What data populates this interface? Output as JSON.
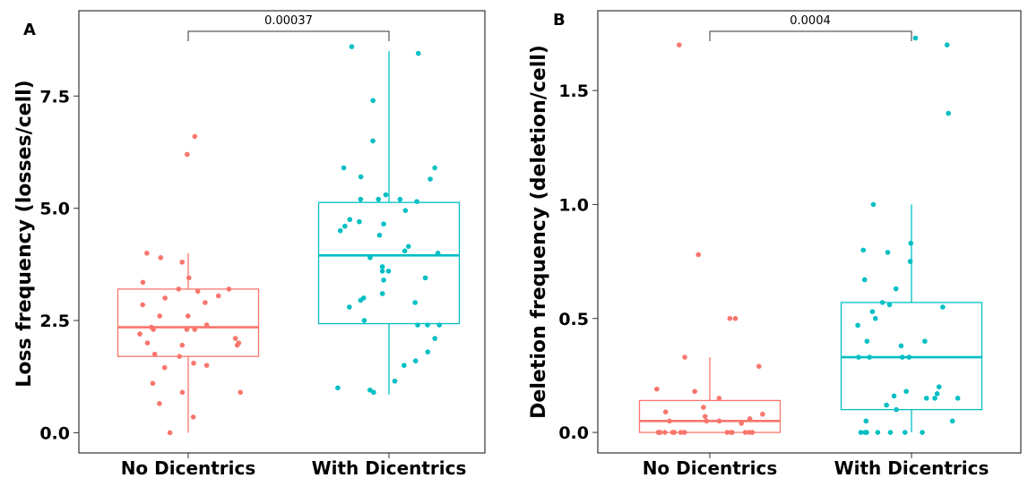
{
  "chart_data": [
    {
      "panel": "A",
      "type": "box",
      "ylabel": "Loss frequency (losses/cell)",
      "categories": [
        "No Dicentrics",
        "With Dicentrics"
      ],
      "yticks": [
        "0.0",
        "2.5",
        "5.0",
        "7.5"
      ],
      "ytick_values": [
        0,
        2.5,
        5,
        7.5
      ],
      "ylim": [
        -0.45,
        9.4
      ],
      "grid": false,
      "pvalue": "0.00037",
      "colors": [
        "#F8766D",
        "#00BFC4"
      ],
      "boxes": [
        {
          "category": "No Dicentrics",
          "min": 0.0,
          "q1": 1.7,
          "median": 2.35,
          "q3": 3.2,
          "max": 4.0
        },
        {
          "category": "With Dicentrics",
          "min": 0.85,
          "q1": 2.43,
          "median": 3.95,
          "q3": 5.13,
          "max": 8.5
        }
      ],
      "points": [
        [
          6.2,
          6.6,
          4.0,
          3.9,
          3.8,
          3.45,
          3.35,
          3.2,
          3.15,
          3.2,
          3.0,
          3.05,
          2.9,
          2.85,
          2.6,
          2.6,
          2.4,
          2.35,
          2.3,
          2.3,
          2.3,
          2.2,
          2.1,
          2.0,
          2.0,
          1.95,
          1.95,
          1.75,
          1.7,
          1.55,
          1.5,
          1.45,
          1.1,
          0.9,
          0.9,
          0.65,
          0.35,
          0.0
        ],
        [
          8.6,
          8.45,
          7.4,
          6.5,
          5.9,
          5.9,
          5.7,
          5.65,
          5.3,
          5.2,
          5.2,
          5.2,
          5.15,
          4.95,
          4.75,
          4.7,
          4.65,
          4.6,
          4.5,
          4.4,
          4.15,
          4.05,
          4.0,
          3.9,
          3.7,
          3.6,
          3.6,
          3.45,
          3.4,
          3.1,
          3.0,
          2.95,
          2.9,
          2.8,
          2.5,
          2.4,
          2.4,
          2.4,
          2.1,
          1.8,
          1.6,
          1.5,
          1.15,
          1.0,
          0.95,
          0.9
        ]
      ]
    },
    {
      "panel": "B",
      "type": "box",
      "ylabel": "Deletion frequency (deletion/cell)",
      "categories": [
        "No Dicentrics",
        "With Dicentrics"
      ],
      "yticks": [
        "0.0",
        "0.5",
        "1.0",
        "1.5"
      ],
      "ytick_values": [
        0,
        0.5,
        1.0,
        1.5
      ],
      "ylim": [
        -0.09,
        1.85
      ],
      "grid": false,
      "pvalue": "0.0004",
      "colors": [
        "#F8766D",
        "#00BFC4"
      ],
      "boxes": [
        {
          "category": "No Dicentrics",
          "min": 0.0,
          "q1": 0.0,
          "median": 0.05,
          "q3": 0.14,
          "max": 0.33
        },
        {
          "category": "With Dicentrics",
          "min": 0.0,
          "q1": 0.1,
          "median": 0.33,
          "q3": 0.57,
          "max": 1.0
        }
      ],
      "points": [
        [
          1.7,
          0.78,
          0.5,
          0.5,
          0.33,
          0.29,
          0.19,
          0.18,
          0.15,
          0.11,
          0.09,
          0.08,
          0.07,
          0.06,
          0.05,
          0.05,
          0.05,
          0.04,
          0.0,
          0.0,
          0.0,
          0.0,
          0.0,
          0.0,
          0.0,
          0.0,
          0.0,
          0.0,
          0.0,
          0.0,
          0.0,
          0.0
        ],
        [
          1.73,
          1.7,
          1.4,
          1.0,
          0.83,
          0.8,
          0.79,
          0.75,
          0.67,
          0.63,
          0.57,
          0.56,
          0.55,
          0.53,
          0.5,
          0.47,
          0.4,
          0.4,
          0.38,
          0.33,
          0.33,
          0.33,
          0.33,
          0.2,
          0.18,
          0.17,
          0.16,
          0.15,
          0.15,
          0.15,
          0.12,
          0.1,
          0.05,
          0.05,
          0.0,
          0.0,
          0.0,
          0.0,
          0.0,
          0.0,
          0.0
        ]
      ]
    }
  ]
}
